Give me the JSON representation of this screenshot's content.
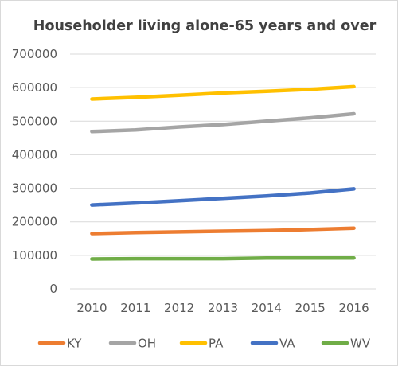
{
  "chart_data": {
    "type": "line",
    "title": "Householder living alone-65 years and over",
    "xlabel": "",
    "ylabel": "",
    "x": [
      "2010",
      "2011",
      "2012",
      "2013",
      "2014",
      "2015",
      "2016"
    ],
    "ylim": [
      0,
      700000
    ],
    "yticks": [
      0,
      100000,
      200000,
      300000,
      400000,
      500000,
      600000,
      700000
    ],
    "grid": true,
    "legend_position": "bottom",
    "series": [
      {
        "name": "KY",
        "color": "#ed7d31",
        "values": [
          165000,
          168000,
          170000,
          172000,
          174000,
          177000,
          181000
        ]
      },
      {
        "name": "OH",
        "color": "#a5a5a5",
        "values": [
          469000,
          474000,
          483000,
          490000,
          500000,
          510000,
          522000
        ]
      },
      {
        "name": "PA",
        "color": "#ffc000",
        "values": [
          566000,
          571000,
          577000,
          584000,
          589000,
          595000,
          603000
        ]
      },
      {
        "name": "VA",
        "color": "#4472c4",
        "values": [
          250000,
          256000,
          263000,
          270000,
          277000,
          286000,
          298000
        ]
      },
      {
        "name": "WV",
        "color": "#70ad47",
        "values": [
          89000,
          90000,
          90000,
          90000,
          92000,
          92000,
          92000
        ]
      }
    ]
  }
}
